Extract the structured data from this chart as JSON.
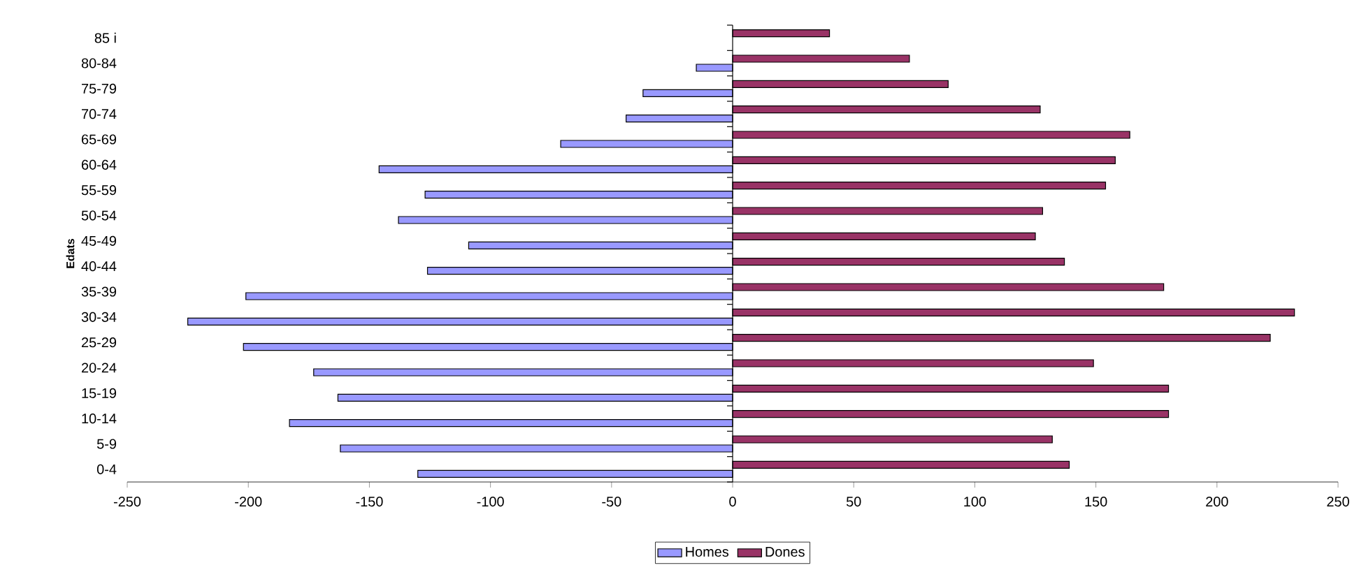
{
  "chart_data": {
    "type": "bar",
    "orientation": "horizontal",
    "ylabel": "Edats",
    "categories": [
      "85 i",
      "80-84",
      "75-79",
      "70-74",
      "65-69",
      "60-64",
      "55-59",
      "50-54",
      "45-49",
      "40-44",
      "35-39",
      "30-34",
      "25-29",
      "20-24",
      "15-19",
      "10-14",
      "5-9",
      "0-4"
    ],
    "series": [
      {
        "name": "Homes",
        "color": "#9999ff",
        "values": [
          null,
          -15,
          -37,
          -44,
          -71,
          -146,
          -127,
          -138,
          -109,
          -126,
          -201,
          -225,
          -202,
          -173,
          -163,
          -183,
          -162,
          -130
        ]
      },
      {
        "name": "Dones",
        "color": "#993366",
        "values": [
          40,
          73,
          89,
          127,
          164,
          158,
          154,
          128,
          125,
          137,
          178,
          232,
          222,
          149,
          180,
          180,
          132,
          139
        ]
      }
    ],
    "xlim": [
      -250,
      250
    ],
    "xticks": [
      -250,
      -200,
      -150,
      -100,
      -50,
      0,
      50,
      100,
      150,
      200,
      250
    ],
    "legend": "bottom"
  }
}
